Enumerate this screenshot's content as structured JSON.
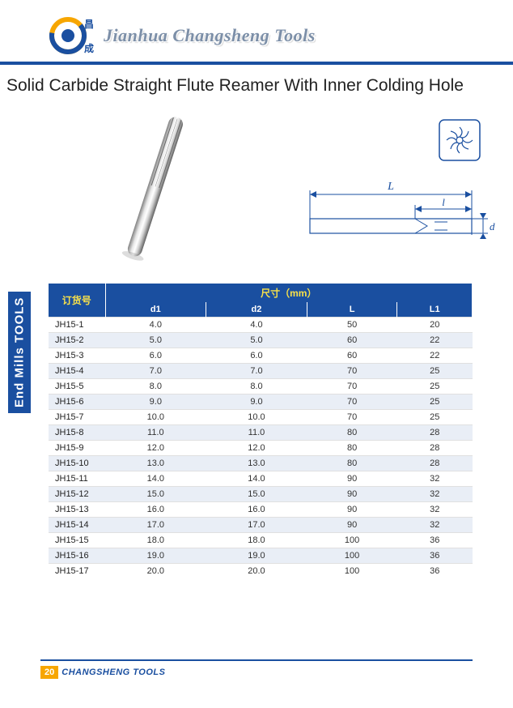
{
  "header": {
    "company_name": "Jianhua Changsheng Tools",
    "logo_chars_top": "昌",
    "logo_chars_bottom": "成"
  },
  "product_title": "Solid Carbide Straight Flute Reamer With Inner Colding Hole",
  "sidebar_label": "End Mills TOOLS",
  "diagram": {
    "label_L": "L",
    "label_l": "l",
    "label_d": "d"
  },
  "table": {
    "dim_header": "尺寸（mm）",
    "code_header": "订货号",
    "columns": [
      "d1",
      "d2",
      "L",
      "L1"
    ],
    "rows": [
      {
        "code": "JH15-1",
        "d1": "4.0",
        "d2": "4.0",
        "L": "50",
        "L1": "20"
      },
      {
        "code": "JH15-2",
        "d1": "5.0",
        "d2": "5.0",
        "L": "60",
        "L1": "22"
      },
      {
        "code": "JH15-3",
        "d1": "6.0",
        "d2": "6.0",
        "L": "60",
        "L1": "22"
      },
      {
        "code": "JH15-4",
        "d1": "7.0",
        "d2": "7.0",
        "L": "70",
        "L1": "25"
      },
      {
        "code": "JH15-5",
        "d1": "8.0",
        "d2": "8.0",
        "L": "70",
        "L1": "25"
      },
      {
        "code": "JH15-6",
        "d1": "9.0",
        "d2": "9.0",
        "L": "70",
        "L1": "25"
      },
      {
        "code": "JH15-7",
        "d1": "10.0",
        "d2": "10.0",
        "L": "70",
        "L1": "25"
      },
      {
        "code": "JH15-8",
        "d1": "11.0",
        "d2": "11.0",
        "L": "80",
        "L1": "28"
      },
      {
        "code": "JH15-9",
        "d1": "12.0",
        "d2": "12.0",
        "L": "80",
        "L1": "28"
      },
      {
        "code": "JH15-10",
        "d1": "13.0",
        "d2": "13.0",
        "L": "80",
        "L1": "28"
      },
      {
        "code": "JH15-11",
        "d1": "14.0",
        "d2": "14.0",
        "L": "90",
        "L1": "32"
      },
      {
        "code": "JH15-12",
        "d1": "15.0",
        "d2": "15.0",
        "L": "90",
        "L1": "32"
      },
      {
        "code": "JH15-13",
        "d1": "16.0",
        "d2": "16.0",
        "L": "90",
        "L1": "32"
      },
      {
        "code": "JH15-14",
        "d1": "17.0",
        "d2": "17.0",
        "L": "90",
        "L1": "32"
      },
      {
        "code": "JH15-15",
        "d1": "18.0",
        "d2": "18.0",
        "L": "100",
        "L1": "36"
      },
      {
        "code": "JH15-16",
        "d1": "19.0",
        "d2": "19.0",
        "L": "100",
        "L1": "36"
      },
      {
        "code": "JH15-17",
        "d1": "20.0",
        "d2": "20.0",
        "L": "100",
        "L1": "36"
      }
    ]
  },
  "footer": {
    "page_num": "20",
    "brand": "CHANGSHENG TOOLS"
  },
  "colors": {
    "blue": "#1a4fa0",
    "yellow": "#f7e04a",
    "orange": "#f7a600",
    "row_even": "#e9eef6"
  }
}
